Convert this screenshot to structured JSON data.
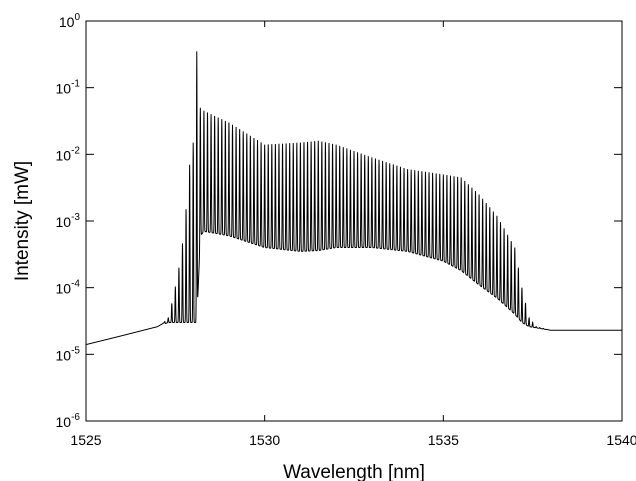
{
  "chart_data": {
    "type": "line",
    "title": "",
    "xlabel": "Wavelength [nm]",
    "ylabel": "Intensity [mW]",
    "xlim": [
      1525,
      1540
    ],
    "ylim": [
      1e-06,
      1
    ],
    "yscale": "log",
    "grid": false,
    "legend": "none",
    "line_color": "#000000",
    "x_ticks": [
      1525,
      1530,
      1535,
      1540
    ],
    "x_tick_labels": [
      "1525",
      "1530",
      "1535",
      "1540"
    ],
    "y_ticks": [
      {
        "value": 1e-06,
        "base": "10",
        "exp": "-6"
      },
      {
        "value": 1e-05,
        "base": "10",
        "exp": "-5"
      },
      {
        "value": 0.0001,
        "base": "10",
        "exp": "-4"
      },
      {
        "value": 0.001,
        "base": "10",
        "exp": "-3"
      },
      {
        "value": 0.01,
        "base": "10",
        "exp": "-2"
      },
      {
        "value": 0.1,
        "base": "10",
        "exp": "-1"
      },
      {
        "value": 1,
        "base": "10",
        "exp": "0"
      }
    ],
    "series": [
      {
        "name": "",
        "x": [
          1525.0,
          1526.0,
          1527.0,
          1527.3,
          1527.45,
          1527.6,
          1527.75,
          1527.9,
          1528.0,
          1528.1,
          1528.2,
          1528.3,
          1529.0,
          1530.0,
          1531.0,
          1531.5,
          1532.0,
          1533.0,
          1534.0,
          1535.0,
          1535.5,
          1536.0,
          1536.5,
          1537.0,
          1537.2,
          1537.4,
          1537.6,
          1538.0,
          1539.0,
          1540.0
        ],
        "peak_envelope": [
          1.4e-05,
          1.9e-05,
          2.6e-05,
          3.5e-05,
          7.5e-05,
          0.0002,
          0.0007,
          0.007,
          0.015,
          0.35,
          0.05,
          0.045,
          0.03,
          0.014,
          0.015,
          0.016,
          0.014,
          0.009,
          0.006,
          0.005,
          0.0045,
          0.0025,
          0.0012,
          0.0004,
          0.0001,
          3.5e-05,
          2.6e-05,
          2.3e-05,
          2.3e-05,
          2.3e-05
        ],
        "valley_envelope": [
          1.4e-05,
          1.9e-05,
          2.6e-05,
          3e-05,
          3e-05,
          3e-05,
          3e-05,
          3e-05,
          3e-05,
          3e-05,
          0.0006,
          0.0007,
          0.0006,
          0.0004,
          0.00035,
          0.00036,
          0.0004,
          0.0004,
          0.00035,
          0.00025,
          0.00018,
          0.00011,
          7e-05,
          4e-05,
          3e-05,
          2.6e-05,
          2.5e-05,
          2.3e-05,
          2.3e-05,
          2.3e-05
        ],
        "fringe_period_nm": 0.1
      }
    ]
  }
}
